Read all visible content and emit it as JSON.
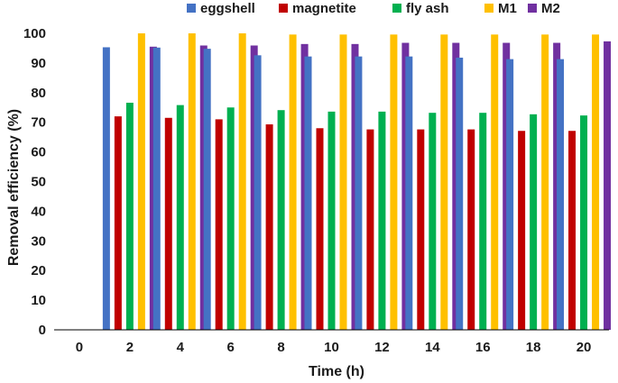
{
  "chart_data": {
    "type": "bar",
    "xlabel": "Time (h)",
    "ylabel": "Removal efficiency (%)",
    "ylim": [
      0,
      100
    ],
    "yticks": [
      "0",
      "10",
      "20",
      "30",
      "40",
      "50",
      "60",
      "70",
      "80",
      "90",
      "100"
    ],
    "categories": [
      "0",
      "2",
      "4",
      "6",
      "8",
      "10",
      "12",
      "14",
      "16",
      "18",
      "20"
    ],
    "grid": false,
    "legend_position": "top",
    "series": [
      {
        "name": "eggshell",
        "color": "#4472c4",
        "values": [
          null,
          95.3,
          95.2,
          94.8,
          92.6,
          92.2,
          92.2,
          92.2,
          91.8,
          91.3,
          91.3
        ]
      },
      {
        "name": "magnetite",
        "color": "#c00000",
        "values": [
          null,
          72.0,
          71.5,
          71.0,
          69.3,
          68.0,
          67.6,
          67.6,
          67.6,
          67.1,
          67.1
        ]
      },
      {
        "name": "fly ash",
        "color": "#00b050",
        "values": [
          null,
          76.6,
          75.8,
          75.0,
          74.1,
          73.6,
          73.6,
          73.2,
          73.2,
          72.7,
          72.3
        ]
      },
      {
        "name": "M1",
        "color": "#ffc000",
        "values": [
          null,
          100.0,
          100.0,
          100.0,
          99.6,
          99.6,
          99.6,
          99.6,
          99.6,
          99.6,
          99.6
        ]
      },
      {
        "name": "M2",
        "color": "#7030a0",
        "values": [
          null,
          95.5,
          95.9,
          95.9,
          96.4,
          96.4,
          96.8,
          96.8,
          96.8,
          96.8,
          97.3
        ]
      }
    ]
  }
}
